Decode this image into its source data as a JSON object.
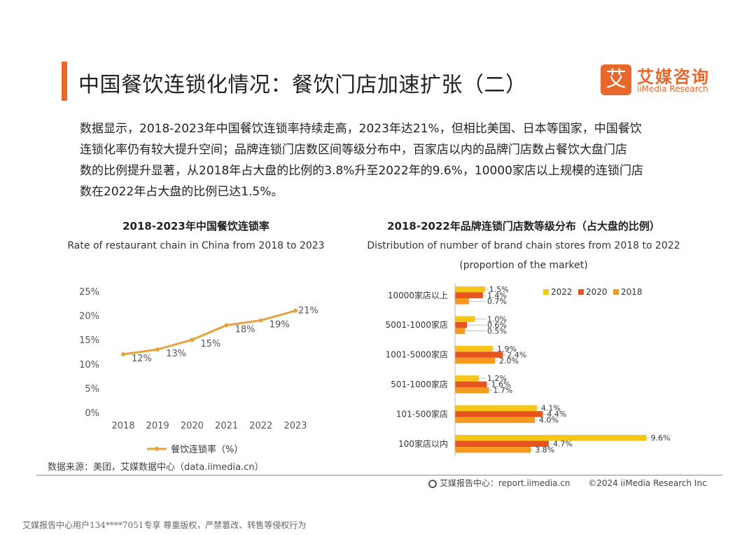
{
  "header": {
    "title": "中国餐饮连锁化情况：餐饮门店加速扩张（二）",
    "logo_mark": "艾",
    "logo_cn": "艾媒咨询",
    "logo_en": "iiMedia Research"
  },
  "paragraph": {
    "lines": [
      "数据显示，2018-2023年中国餐饮连锁率持续走高，2023年达21%，但相比美国、日本等国家，中国餐饮",
      "连锁化率仍有较大提升空间；品牌连锁门店数区间等级分布中，百家店以内的品牌门店数占餐饮大盘门店",
      "数的比例提升显著，从2018年占大盘的比例的3.8%升至2022年的9.6%，10000家店以上规模的连锁门店",
      "数在2022年占大盘的比例已达1.5%。"
    ]
  },
  "colors": {
    "accent": "#e8672a",
    "line": "#e6a23c",
    "y2022": "#f5c518",
    "y2020": "#e8541e",
    "y2018": "#f59a1f"
  },
  "chart_data": [
    {
      "type": "line",
      "title": "2018-2023年中国餐饮连锁率",
      "subtitle": "Rate of restaurant chain in China from 2018 to 2023",
      "x": [
        "2018",
        "2019",
        "2020",
        "2021",
        "2022",
        "2023"
      ],
      "series": [
        {
          "name": "餐饮连锁率（%）",
          "values": [
            12,
            13,
            15,
            18,
            19,
            21
          ]
        }
      ],
      "data_labels": [
        "12%",
        "13%",
        "15%",
        "18%",
        "19%",
        "21%"
      ],
      "ylim": [
        0,
        25
      ],
      "yticks": [
        0,
        5,
        10,
        15,
        20,
        25
      ],
      "ytick_labels": [
        "0%",
        "5%",
        "10%",
        "15%",
        "20%",
        "25%"
      ],
      "legend_position": "bottom"
    },
    {
      "type": "bar",
      "orientation": "horizontal",
      "title": "2018-2022年品牌连锁门店数等级分布（占大盘的比例）",
      "subtitle_lines": [
        "Distribution of number of brand chain stores from 2018 to 2022",
        "(proportion of the market)"
      ],
      "categories": [
        "10000家店以上",
        "5001-1000家店",
        "1001-5000家店",
        "501-1000家店",
        "101-500家店",
        "100家店以内"
      ],
      "series": [
        {
          "name": "2022",
          "values": [
            1.5,
            1.0,
            1.9,
            1.2,
            4.1,
            9.6
          ],
          "labels": [
            "1.5%",
            "1.0%",
            "1.9%",
            "1.2%",
            "4.1%",
            "9.6%"
          ]
        },
        {
          "name": "2020",
          "values": [
            1.4,
            0.6,
            2.4,
            1.6,
            4.4,
            4.7
          ],
          "labels": [
            "1.4%",
            "0.6%",
            "2.4%",
            "1.6%",
            "4.4%",
            "4.7%"
          ]
        },
        {
          "name": "2018",
          "values": [
            0.7,
            0.5,
            2.0,
            1.7,
            4.0,
            3.8
          ],
          "labels": [
            "0.7%",
            "0.5%",
            "2.0%",
            "1.7%",
            "4.0%",
            "3.8%"
          ]
        }
      ],
      "legend_position": "top-right"
    }
  ],
  "source": "数据来源：美团，艾媒数据中心（data.iimedia.cn）",
  "footer": {
    "report": "艾媒报告中心：report.iimedia.cn",
    "copyright": "©2024  iiMedia Research  Inc"
  },
  "watermark": "艾媒报告中心用户134****7051专享 尊重版权，严禁篡改、转售等侵权行为"
}
